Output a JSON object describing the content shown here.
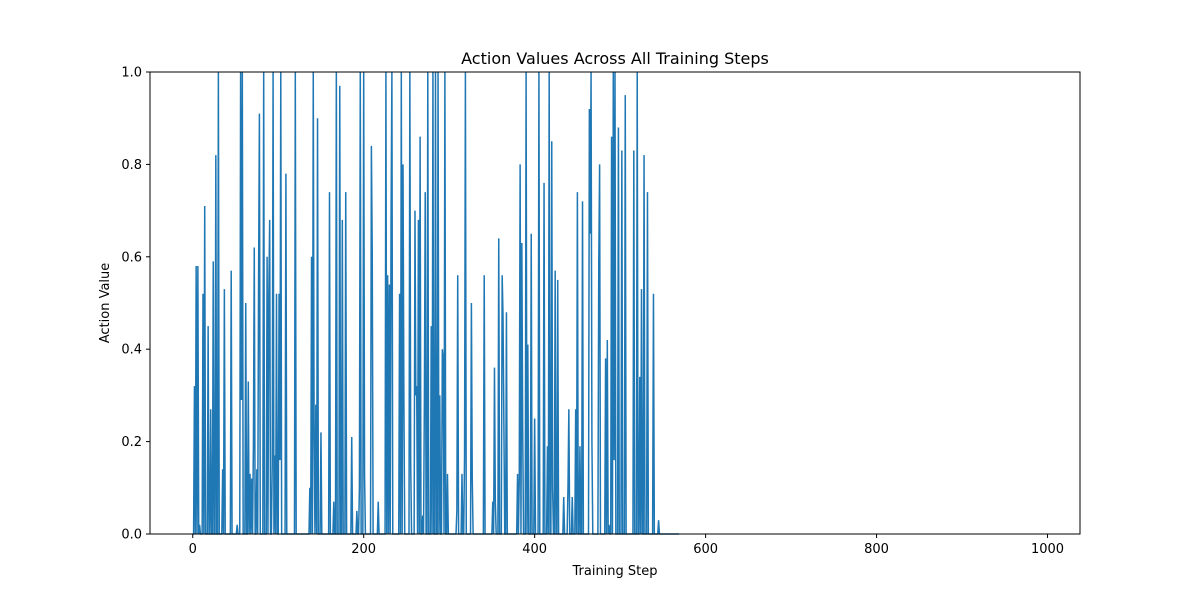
{
  "chart_data": {
    "type": "line",
    "title": "Action Values Across All Training Steps",
    "xlabel": "Training Step",
    "ylabel": "Action Value",
    "xlim": [
      -50,
      1038
    ],
    "ylim": [
      0.0,
      1.0
    ],
    "x_ticks": [
      0,
      200,
      400,
      600,
      800,
      1000
    ],
    "x_tick_labels": [
      "0",
      "200",
      "400",
      "600",
      "800",
      "1000"
    ],
    "y_ticks": [
      0.0,
      0.2,
      0.4,
      0.6,
      0.8,
      1.0
    ],
    "y_tick_labels": [
      "0.0",
      "0.2",
      "0.4",
      "0.6",
      "0.8",
      "1.0"
    ],
    "grid": false,
    "legend": "none",
    "series": [
      {
        "color": "#1f77b4",
        "x_start": 0,
        "x_step": 1,
        "values": [
          0.0,
          0.0,
          0.32,
          0.0,
          0.58,
          0.0,
          0.58,
          0.0,
          0.02,
          0.0,
          0.0,
          0.0,
          0.52,
          0.0,
          0.71,
          0.0,
          0.0,
          0.0,
          0.45,
          0.0,
          0.0,
          0.27,
          0.0,
          0.0,
          0.59,
          0.0,
          0.0,
          0.82,
          0.0,
          0.0,
          1.0,
          0.0,
          0.0,
          0.0,
          0.0,
          0.14,
          0.0,
          0.53,
          0.0,
          0.0,
          0.0,
          0.0,
          0.0,
          0.0,
          0.0,
          0.57,
          0.0,
          0.0,
          0.0,
          0.0,
          0.0,
          0.0,
          0.02,
          0.0,
          0.0,
          0.0,
          1.0,
          0.29,
          1.0,
          0.0,
          0.0,
          0.0,
          0.5,
          0.0,
          0.0,
          0.33,
          0.0,
          0.13,
          0.0,
          0.12,
          0.0,
          0.2,
          0.62,
          0.0,
          0.0,
          0.14,
          0.0,
          0.54,
          0.91,
          0.0,
          0.0,
          0.0,
          0.0,
          1.0,
          0.0,
          0.0,
          0.0,
          0.6,
          0.0,
          0.52,
          0.68,
          0.0,
          0.0,
          0.15,
          1.0,
          0.0,
          0.17,
          0.0,
          0.52,
          0.0,
          0.0,
          0.52,
          0.16,
          1.0,
          0.0,
          0.0,
          0.0,
          0.0,
          0.0,
          0.78,
          0.0,
          0.0,
          0.0,
          0.0,
          0.0,
          0.0,
          0.0,
          0.0,
          0.0,
          0.0,
          1.0,
          0.0,
          0.0,
          0.0,
          0.0,
          0.0,
          0.0,
          0.0,
          0.0,
          0.0,
          0.0,
          0.0,
          0.0,
          0.0,
          0.0,
          0.0,
          0.0,
          0.1,
          0.0,
          0.6,
          0.0,
          1.0,
          0.21,
          0.0,
          0.28,
          0.0,
          0.9,
          0.0,
          0.0,
          0.0,
          0.22,
          0.0,
          0.0,
          0.0,
          0.0,
          0.0,
          0.0,
          0.0,
          0.0,
          0.0,
          0.74,
          0.0,
          0.0,
          0.0,
          0.0,
          0.07,
          0.0,
          0.0,
          1.0,
          0.0,
          0.0,
          0.0,
          0.97,
          0.0,
          0.0,
          0.68,
          0.0,
          0.0,
          0.0,
          0.74,
          0.0,
          0.0,
          0.0,
          0.0,
          0.0,
          0.0,
          0.21,
          0.0,
          0.0,
          0.0,
          0.0,
          0.0,
          0.05,
          0.0,
          0.0,
          0.1,
          1.0,
          0.0,
          0.0,
          0.0,
          1.0,
          0.13,
          0.0,
          0.0,
          0.0,
          0.0,
          0.0,
          0.0,
          0.0,
          0.84,
          0.61,
          0.0,
          0.0,
          0.0,
          0.0,
          0.0,
          0.0,
          0.07,
          0.0,
          0.0,
          0.0,
          0.0,
          0.0,
          0.0,
          0.0,
          0.0,
          1.0,
          0.0,
          0.56,
          0.0,
          0.54,
          0.0,
          0.68,
          1.0,
          0.0,
          0.0,
          0.0,
          0.0,
          0.0,
          0.0,
          0.0,
          0.0,
          0.52,
          0.0,
          1.0,
          0.0,
          0.8,
          0.3,
          0.0,
          0.0,
          0.0,
          0.0,
          0.0,
          0.0,
          1.0,
          0.15,
          0.0,
          0.0,
          0.0,
          0.0,
          0.7,
          0.3,
          0.32,
          0.0,
          0.68,
          0.0,
          0.86,
          0.0,
          0.0,
          0.04,
          0.0,
          0.29,
          0.74,
          0.0,
          0.0,
          1.0,
          0.0,
          0.0,
          0.0,
          0.45,
          0.0,
          1.0,
          0.0,
          0.0,
          1.0,
          0.0,
          0.0,
          1.0,
          0.0,
          0.3,
          0.0,
          0.0,
          0.4,
          0.38,
          0.0,
          1.0,
          0.0,
          0.0,
          0.13,
          0.0,
          0.0,
          0.0,
          0.0,
          0.0,
          0.0,
          0.0,
          0.0,
          0.0,
          0.0,
          0.05,
          0.56,
          0.0,
          0.0,
          0.0,
          0.0,
          0.13,
          0.0,
          0.0,
          0.17,
          1.0,
          0.0,
          0.0,
          0.0,
          0.0,
          0.0,
          0.0,
          0.5,
          0.12,
          0.0,
          0.0,
          0.0,
          0.0,
          0.0,
          0.0,
          0.0,
          0.0,
          0.0,
          0.0,
          0.0,
          0.0,
          0.0,
          0.56,
          0.0,
          0.0,
          0.0,
          0.0,
          0.0,
          0.0,
          0.0,
          0.0,
          0.0,
          0.07,
          0.0,
          0.36,
          0.07,
          0.0,
          0.0,
          0.0,
          0.64,
          0.0,
          0.0,
          0.0,
          0.56,
          0.47,
          0.24,
          0.0,
          0.0,
          0.48,
          0.0,
          0.0,
          0.0,
          0.0,
          0.0,
          0.0,
          0.0,
          0.0,
          0.0,
          0.0,
          0.0,
          0.0,
          0.13,
          0.0,
          0.12,
          0.8,
          0.0,
          0.63,
          0.23,
          0.0,
          0.0,
          0.0,
          1.0,
          0.0,
          0.41,
          0.0,
          0.0,
          0.0,
          0.65,
          0.0,
          0.0,
          0.0,
          0.25,
          0.0,
          0.0,
          0.0,
          0.0,
          1.0,
          0.0,
          0.0,
          0.0,
          0.0,
          0.0,
          0.76,
          0.0,
          0.0,
          0.0,
          0.19,
          0.0,
          1.0,
          0.0,
          0.0,
          0.85,
          0.1,
          0.0,
          0.0,
          0.57,
          0.0,
          0.0,
          0.55,
          0.0,
          0.0,
          0.0,
          0.0,
          0.0,
          0.0,
          0.08,
          0.0,
          0.0,
          0.0,
          0.0,
          0.1,
          0.27,
          0.0,
          0.0,
          0.0,
          0.08,
          0.0,
          0.0,
          0.0,
          0.27,
          0.0,
          0.74,
          0.0,
          0.0,
          0.19,
          0.0,
          0.0,
          0.72,
          0.0,
          0.0,
          0.0,
          0.0,
          0.0,
          0.0,
          0.0,
          0.92,
          0.65,
          1.0,
          0.2,
          0.0,
          0.0,
          0.0,
          0.0,
          0.0,
          0.0,
          0.0,
          0.58,
          0.8,
          0.0,
          0.0,
          0.0,
          0.0,
          0.0,
          0.0,
          0.38,
          0.0,
          0.42,
          0.0,
          0.02,
          0.0,
          0.0,
          0.86,
          0.0,
          1.0,
          0.16,
          1.0,
          0.0,
          0.0,
          0.0,
          0.88,
          0.0,
          0.0,
          0.0,
          0.83,
          0.0,
          0.0,
          0.0,
          0.95,
          0.0,
          0.0,
          0.0,
          0.0,
          0.0,
          0.0,
          0.0,
          0.0,
          0.0,
          0.83,
          0.0,
          0.0,
          0.0,
          1.0,
          0.0,
          0.0,
          0.34,
          0.0,
          0.53,
          0.0,
          0.0,
          0.82,
          0.0,
          0.0,
          0.0,
          0.74,
          0.0,
          0.0,
          0.0,
          0.0,
          0.0,
          0.0,
          0.52,
          0.0,
          0.0,
          0.0,
          0.0,
          0.0,
          0.03,
          0.0,
          0.0,
          0.0,
          0.0,
          0.0,
          0.0,
          0.0,
          0.0,
          0.0,
          0.0,
          0.0,
          0.0,
          0.0,
          0.0,
          0.0,
          0.0,
          0.0,
          0.0,
          0.0,
          0.0,
          0.0,
          0.0,
          0.0,
          0.0
        ]
      }
    ]
  }
}
